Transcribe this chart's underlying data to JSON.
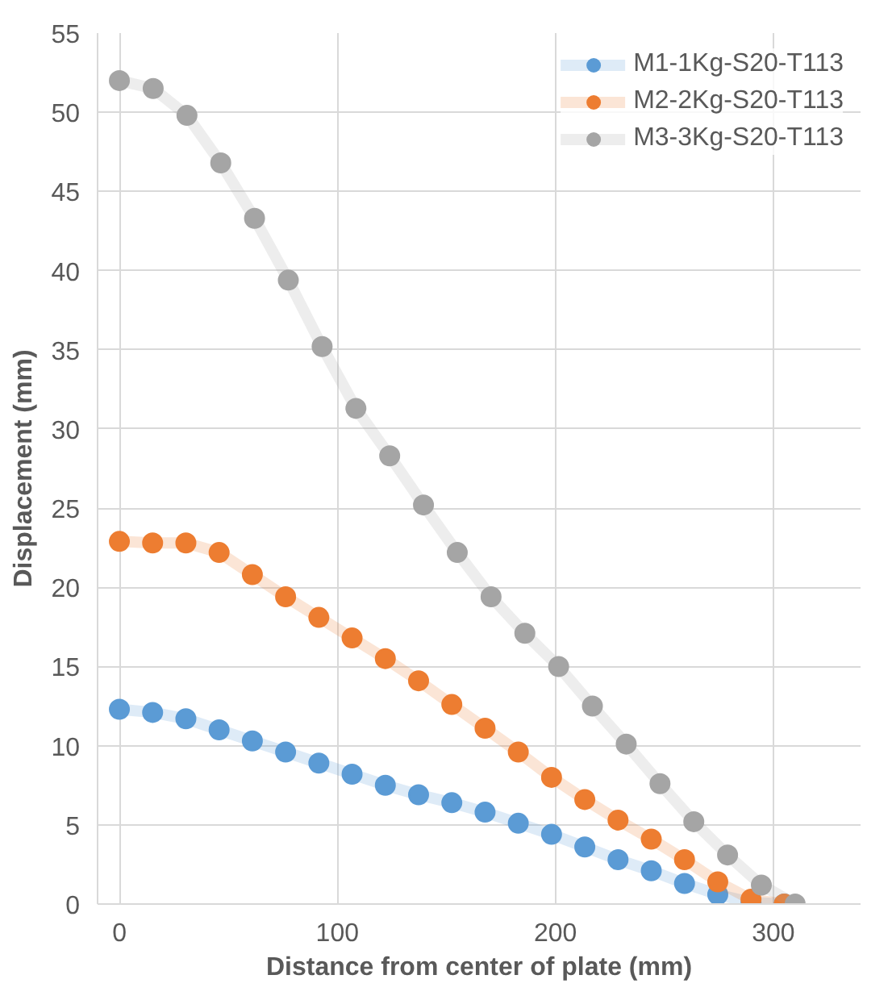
{
  "chart_data": {
    "type": "line",
    "xlabel": "Distance from center of plate (mm)",
    "ylabel": "Displacement (mm)",
    "xlim": [
      -10,
      340
    ],
    "xticks": [
      0,
      100,
      200,
      300
    ],
    "ylim": [
      0,
      55
    ],
    "yticks": [
      0,
      5,
      10,
      15,
      20,
      25,
      30,
      35,
      40,
      45,
      50,
      55
    ],
    "grid": true,
    "legend": "top right",
    "marker": "circle",
    "line_style": "solid",
    "series": [
      {
        "name": "M1-1Kg-S20-T113",
        "color": "#5b9bd5",
        "x": [
          0,
          15.25,
          30.5,
          45.75,
          61,
          76.25,
          91.5,
          106.75,
          122,
          137.25,
          152.5,
          167.75,
          183,
          198.25,
          213.5,
          228.75,
          244,
          259.25,
          274.5,
          289.75,
          305
        ],
        "values": [
          12.3,
          12.1,
          11.7,
          11.0,
          10.3,
          9.6,
          8.9,
          8.2,
          7.5,
          6.9,
          6.4,
          5.8,
          5.1,
          4.4,
          3.6,
          2.8,
          2.1,
          1.3,
          0.6,
          0.1,
          0.0
        ]
      },
      {
        "name": "M2-2Kg-S20-T113",
        "color": "#ed7d31",
        "x": [
          0,
          15.25,
          30.5,
          45.75,
          61,
          76.25,
          91.5,
          106.75,
          122,
          137.25,
          152.5,
          167.75,
          183,
          198.25,
          213.5,
          228.75,
          244,
          259.25,
          274.5,
          289.75,
          305
        ],
        "values": [
          22.9,
          22.8,
          22.8,
          22.2,
          20.8,
          19.4,
          18.1,
          16.8,
          15.5,
          14.1,
          12.6,
          11.1,
          9.6,
          8.0,
          6.6,
          5.3,
          4.1,
          2.8,
          1.4,
          0.3,
          0.0
        ]
      },
      {
        "name": "M3-3Kg-S20-T113",
        "color": "#a5a5a5",
        "x": [
          0,
          15.5,
          31,
          46.5,
          62,
          77.5,
          93,
          108.5,
          124,
          139.5,
          155,
          170.5,
          186,
          201.5,
          217,
          232.5,
          248,
          263.5,
          279,
          294.5,
          310
        ],
        "values": [
          52.0,
          51.5,
          49.8,
          46.8,
          43.3,
          39.4,
          35.2,
          31.3,
          28.3,
          25.2,
          22.2,
          19.4,
          17.1,
          15.0,
          12.5,
          10.1,
          7.6,
          5.2,
          3.1,
          1.2,
          0.0
        ]
      }
    ]
  }
}
